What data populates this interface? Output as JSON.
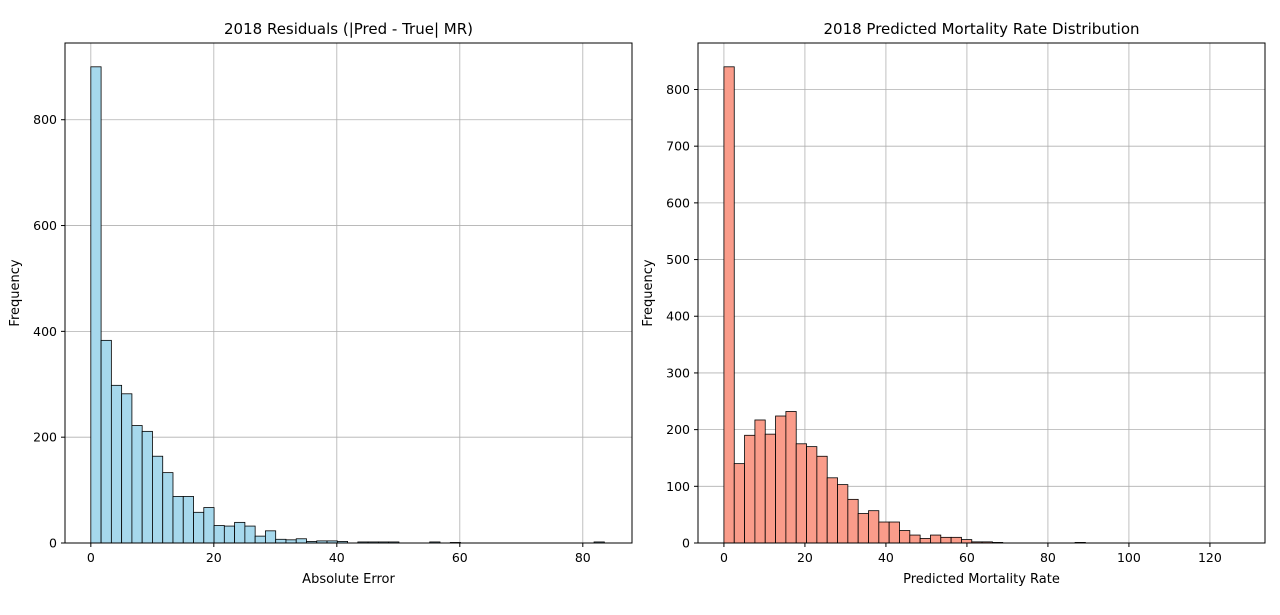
{
  "chart_data": [
    {
      "type": "bar",
      "title": "2018 Residuals (|Pred - True| MR)",
      "xlabel": "Absolute Error",
      "ylabel": "Frequency",
      "xlim": [
        -4.2,
        88
      ],
      "ylim": [
        0,
        945
      ],
      "xticks": [
        0,
        20,
        40,
        60,
        80
      ],
      "yticks": [
        0,
        200,
        400,
        600,
        800
      ],
      "grid": true,
      "color": "#a6d8ec",
      "edge_color": "#000000",
      "bin_start": 0,
      "bin_width": 1.67,
      "values": [
        900,
        383,
        298,
        282,
        222,
        211,
        164,
        133,
        88,
        88,
        58,
        67,
        33,
        32,
        39,
        32,
        13,
        23,
        7,
        6,
        8,
        3,
        4,
        4,
        3,
        0,
        2,
        2,
        2,
        2,
        0,
        0,
        0,
        2,
        0,
        1,
        0,
        0,
        0,
        0,
        0,
        0,
        0,
        0,
        0,
        0,
        0,
        0,
        0,
        2
      ]
    },
    {
      "type": "bar",
      "title": "2018 Predicted Mortality Rate Distribution",
      "xlabel": "Predicted Mortality Rate",
      "ylabel": "Frequency",
      "xlim": [
        -6.4,
        133.6
      ],
      "ylim": [
        0,
        882
      ],
      "xticks": [
        0,
        20,
        40,
        60,
        80,
        100,
        120
      ],
      "yticks": [
        0,
        100,
        200,
        300,
        400,
        500,
        600,
        700,
        800
      ],
      "grid": true,
      "color": "#fa9c8a",
      "edge_color": "#000000",
      "bin_start": 0,
      "bin_width": 2.55,
      "values": [
        840,
        140,
        190,
        217,
        192,
        224,
        232,
        175,
        170,
        153,
        115,
        103,
        77,
        52,
        57,
        37,
        37,
        22,
        14,
        8,
        14,
        10,
        10,
        6,
        2,
        2,
        1,
        0,
        0,
        0,
        0,
        0,
        0,
        0,
        1,
        0,
        0,
        0,
        0,
        0,
        0,
        0,
        0,
        0,
        0,
        0,
        0,
        0,
        0,
        0
      ]
    }
  ]
}
